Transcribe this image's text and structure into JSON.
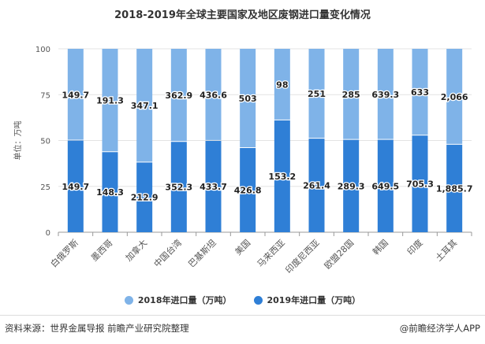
{
  "chart_data": {
    "type": "bar",
    "stacked": "percent",
    "title": "2018-2019年全球主要国家及地区废钢进口量变化情况",
    "ylabel": "单位：万吨",
    "ylim": [
      0,
      100
    ],
    "yticks": [
      0,
      25,
      50,
      75,
      100
    ],
    "grid": true,
    "legend_position": "bottom",
    "categories": [
      "白俄罗斯",
      "墨西哥",
      "加拿大",
      "中国台湾",
      "巴基斯坦",
      "美国",
      "马来西亚",
      "印度尼西亚",
      "欧盟28国",
      "韩国",
      "印度",
      "土耳其"
    ],
    "series": [
      {
        "name": "2018年进口量（万吨）",
        "color": "#7fb3e8",
        "values": [
          149.7,
          191.3,
          347.1,
          362.9,
          436.6,
          503,
          98,
          251,
          285,
          639.3,
          633,
          2066
        ],
        "labels": [
          "149.7",
          "191.3",
          "347.1",
          "362.9",
          "436.6",
          "503",
          "98",
          "251",
          "285",
          "639.3",
          "633",
          "2,066"
        ]
      },
      {
        "name": "2019年进口量（万吨）",
        "color": "#2f7fd6",
        "values": [
          149.7,
          148.3,
          212.9,
          352.3,
          433.7,
          426.8,
          153.2,
          261.4,
          289.3,
          649.5,
          705.3,
          1885.7
        ],
        "labels": [
          "149.7",
          "148.3",
          "212.9",
          "352.3",
          "433.7",
          "426.8",
          "153.2",
          "261.4",
          "289.3",
          "649.5",
          "705.3",
          "1,885.7"
        ]
      }
    ]
  },
  "footer": {
    "source": "资料来源：世界金属导报 前瞻产业研究院整理",
    "brand": "@前瞻经济学人APP"
  }
}
